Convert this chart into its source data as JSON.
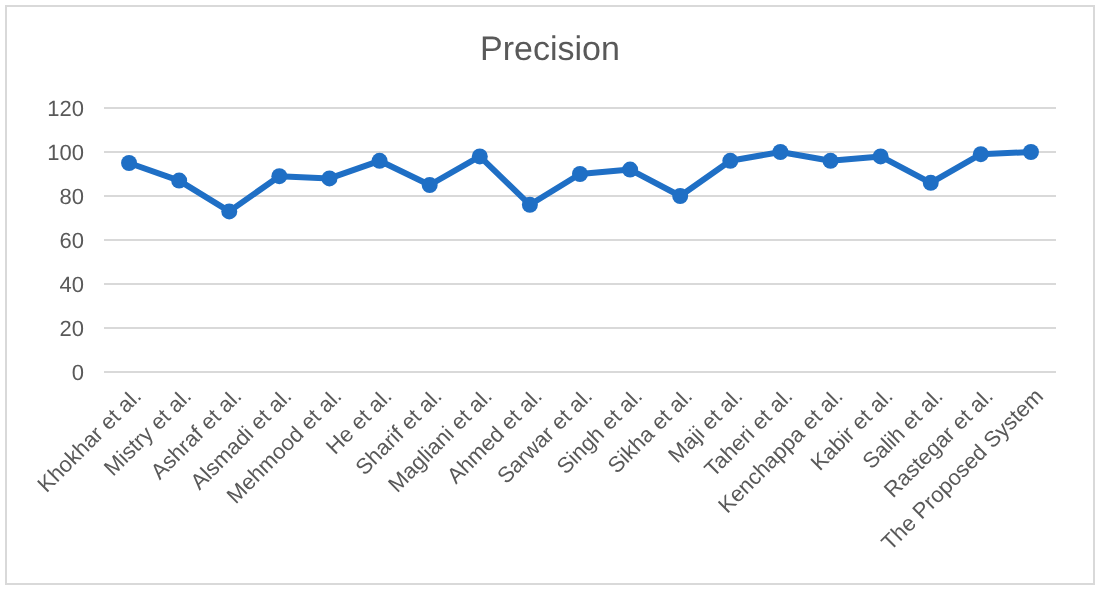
{
  "chart_data": {
    "type": "line",
    "title": "Precision",
    "categories": [
      "Khokhar et al.",
      "Mistry et al.",
      "Ashraf et al.",
      "Alsmadi et al.",
      "Mehmood et al.",
      "He et al.",
      "Sharif et al.",
      "Magliani et al.",
      "Ahmed et al.",
      "Sarwar et al.",
      "Singh et al.",
      "Sikha et al.",
      "Maji et al.",
      "Taheri et al.",
      "Kenchappa et al.",
      "Kabir et al.",
      "Salih et al.",
      "Rastegar et al.",
      "The Proposed System"
    ],
    "series": [
      {
        "color": "#1f6fc5",
        "values": [
          95,
          87,
          73,
          89,
          88,
          96,
          85,
          98,
          76,
          90,
          92,
          80,
          96,
          100,
          96,
          98,
          86,
          99,
          100
        ]
      }
    ],
    "ylim": [
      0,
      120
    ],
    "yticks": [
      0,
      20,
      40,
      60,
      80,
      100,
      120
    ],
    "grid": "y",
    "marker": "circle"
  }
}
